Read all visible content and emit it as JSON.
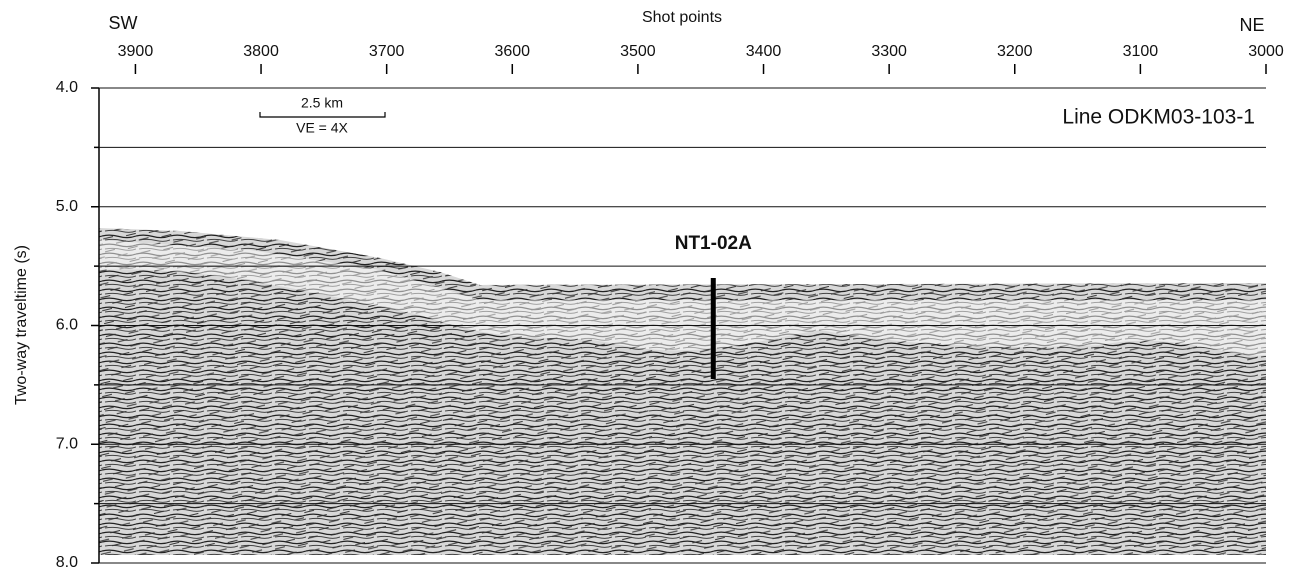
{
  "chart_data": {
    "type": "profile",
    "x_label": "Shot points",
    "y_label": "Two-way traveltime (s)",
    "left_label": "SW",
    "right_label": "NE",
    "line_label": "Line ODKM03-103-1",
    "scale_label": "2.5 km",
    "ve_label": "VE = 4X",
    "xlim": [
      3929,
      3000
    ],
    "xticks": [
      3900,
      3800,
      3700,
      3600,
      3500,
      3400,
      3300,
      3200,
      3100,
      3000
    ],
    "ylim": [
      4,
      8
    ],
    "yticks": [
      {
        "value": 4,
        "label": "4.0"
      },
      {
        "value": 5,
        "label": "5.0"
      },
      {
        "value": 6,
        "label": "6.0"
      },
      {
        "value": 7,
        "label": "7.0"
      },
      {
        "value": 8,
        "label": "8.0"
      }
    ],
    "yminor_ticks": [
      4.5,
      5.5,
      6.5,
      7.5
    ],
    "grid": true,
    "site": {
      "label": "NT1-02A",
      "x": 3440,
      "y": [
        5.6,
        6.45
      ],
      "color": "#000000"
    }
  }
}
